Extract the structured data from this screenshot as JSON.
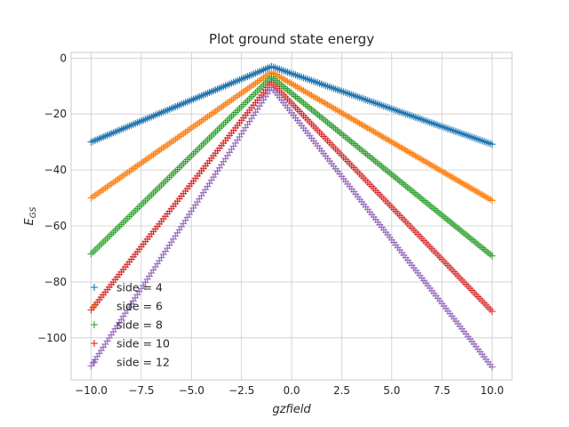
{
  "chart_data": {
    "type": "scatter",
    "title": "Plot ground state energy",
    "xlabel": "gzfield",
    "ylabel_base": "E",
    "ylabel_sub": "GS",
    "xlim": [
      -11,
      11
    ],
    "ylim": [
      -115,
      2
    ],
    "xticks": [
      -10,
      -7.5,
      -5,
      -2.5,
      0,
      2.5,
      5,
      7.5,
      10
    ],
    "xtick_labels": [
      "−10.0",
      "−7.5",
      "−5.0",
      "−2.5",
      "0.0",
      "2.5",
      "5.0",
      "7.5",
      "10.0"
    ],
    "yticks": [
      0,
      -20,
      -40,
      -60,
      -80,
      -100
    ],
    "ytick_labels": [
      "0",
      "−20",
      "−40",
      "−60",
      "−80",
      "−100"
    ],
    "grid": true,
    "legend_position": "lower-left",
    "marker": "+",
    "x_range": [
      -10,
      10
    ],
    "point_count": 201,
    "series": [
      {
        "name": "side = 4",
        "color": "#1f77b4",
        "peak_x": -1,
        "peak_y": -3.0,
        "y_at_left_end": -30.0,
        "y_at_right_end": -30.8
      },
      {
        "name": "side = 6",
        "color": "#ff7f0e",
        "peak_x": -1,
        "peak_y": -5.0,
        "y_at_left_end": -50.0,
        "y_at_right_end": -50.9
      },
      {
        "name": "side = 8",
        "color": "#2ca02c",
        "peak_x": -1,
        "peak_y": -6.8,
        "y_at_left_end": -70.0,
        "y_at_right_end": -70.7
      },
      {
        "name": "side = 10",
        "color": "#d62728",
        "peak_x": -1,
        "peak_y": -8.7,
        "y_at_left_end": -90.0,
        "y_at_right_end": -90.5
      },
      {
        "name": "side = 12",
        "color": "#9467bd",
        "peak_x": -1,
        "peak_y": -10.5,
        "y_at_left_end": -110.0,
        "y_at_right_end": -110.4
      }
    ]
  }
}
